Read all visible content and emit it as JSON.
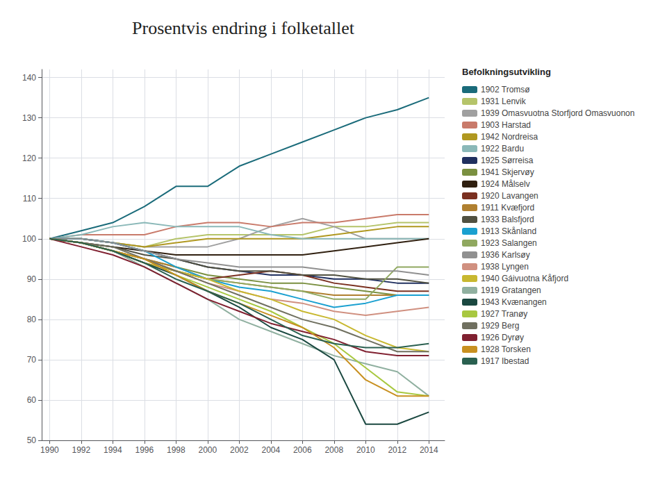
{
  "chart_data": {
    "type": "line",
    "title": "Prosentvis endring i folketallet",
    "legend_title": "Befolkningsutvikling",
    "x": [
      1990,
      1992,
      1994,
      1996,
      1998,
      2000,
      2002,
      2004,
      2006,
      2008,
      2010,
      2012,
      2014
    ],
    "xlim": [
      1989.5,
      2015.0
    ],
    "xticks": [
      1990,
      1992,
      1994,
      1996,
      1998,
      2000,
      2002,
      2004,
      2006,
      2008,
      2010,
      2012,
      2014
    ],
    "ylim": [
      50,
      142
    ],
    "yticks": [
      50,
      60,
      70,
      80,
      90,
      100,
      110,
      120,
      130,
      140
    ],
    "grid": true,
    "legend": "right",
    "series": [
      {
        "name": "1902 Tromsø",
        "color": "#1a6b7a",
        "values": [
          100,
          102,
          104,
          108,
          113,
          113,
          118,
          121,
          124,
          127,
          130,
          132,
          135
        ]
      },
      {
        "name": "1931 Lenvik",
        "color": "#b5c46a",
        "values": [
          100,
          100,
          99,
          98,
          100,
          101,
          101,
          101,
          101,
          103,
          103,
          104,
          104
        ]
      },
      {
        "name": "1939 Omasvuotna Storfjord Omasvuonon",
        "color": "#a0a0a0",
        "values": [
          100,
          100,
          99,
          98,
          98,
          98,
          100,
          103,
          105,
          103,
          100,
          100,
          100
        ]
      },
      {
        "name": "1903 Harstad",
        "color": "#c97a6a",
        "values": [
          100,
          101,
          101,
          101,
          103,
          104,
          104,
          103,
          104,
          104,
          105,
          106,
          106
        ]
      },
      {
        "name": "1942 Nordreisa",
        "color": "#b09820",
        "values": [
          100,
          100,
          99,
          98,
          99,
          100,
          100,
          100,
          100,
          101,
          102,
          103,
          103
        ]
      },
      {
        "name": "1922 Bardu",
        "color": "#8ab8b8",
        "values": [
          100,
          101,
          103,
          104,
          103,
          103,
          103,
          101,
          100,
          100,
          100,
          100,
          100
        ]
      },
      {
        "name": "1925 Sørreisa",
        "color": "#203060",
        "values": [
          100,
          100,
          99,
          97,
          95,
          93,
          92,
          91,
          91,
          90,
          90,
          89,
          89
        ]
      },
      {
        "name": "1941 Skjervøy",
        "color": "#7a9040",
        "values": [
          100,
          99,
          97,
          95,
          93,
          91,
          90,
          89,
          89,
          88,
          87,
          86,
          86
        ]
      },
      {
        "name": "1924 Målselv",
        "color": "#302010",
        "values": [
          100,
          99,
          98,
          97,
          96,
          96,
          96,
          96,
          96,
          97,
          98,
          99,
          100
        ]
      },
      {
        "name": "1920 Lavangen",
        "color": "#7a3020",
        "values": [
          100,
          99,
          97,
          94,
          92,
          90,
          91,
          92,
          91,
          89,
          88,
          87,
          87
        ]
      },
      {
        "name": "1911 Kvæfjord",
        "color": "#b08030",
        "values": [
          100,
          99,
          97,
          95,
          93,
          90,
          89,
          88,
          87,
          86,
          86,
          86,
          86
        ]
      },
      {
        "name": "1933 Balsfjord",
        "color": "#505040",
        "values": [
          100,
          99,
          98,
          96,
          95,
          93,
          92,
          92,
          91,
          91,
          90,
          90,
          89
        ]
      },
      {
        "name": "1913 Skånland",
        "color": "#1aa0d0",
        "values": [
          100,
          100,
          99,
          97,
          93,
          90,
          88,
          87,
          85,
          83,
          84,
          86,
          86
        ]
      },
      {
        "name": "1923 Salangen",
        "color": "#90a860",
        "values": [
          100,
          99,
          97,
          95,
          92,
          90,
          89,
          88,
          87,
          85,
          85,
          93,
          93
        ]
      },
      {
        "name": "1936 Karlsøy",
        "color": "#909090",
        "values": [
          100,
          100,
          99,
          97,
          95,
          94,
          93,
          93,
          93,
          92,
          92,
          92,
          91
        ]
      },
      {
        "name": "1938 Lyngen",
        "color": "#d09080",
        "values": [
          100,
          99,
          97,
          95,
          92,
          89,
          87,
          85,
          84,
          82,
          81,
          82,
          83
        ]
      },
      {
        "name": "1940 Gáivuotna Kåfjord",
        "color": "#c8b830",
        "values": [
          100,
          99,
          97,
          94,
          92,
          90,
          87,
          85,
          82,
          80,
          76,
          73,
          72
        ]
      },
      {
        "name": "1919 Gratangen",
        "color": "#90b0a0",
        "values": [
          100,
          99,
          97,
          93,
          89,
          85,
          80,
          77,
          74,
          71,
          69,
          67,
          61
        ]
      },
      {
        "name": "1943 Kvænangen",
        "color": "#1a4840",
        "values": [
          100,
          99,
          97,
          94,
          91,
          87,
          83,
          78,
          75,
          70,
          54,
          54,
          57
        ]
      },
      {
        "name": "1927 Tranøy",
        "color": "#a8c840",
        "values": [
          100,
          99,
          97,
          95,
          91,
          88,
          85,
          82,
          78,
          74,
          68,
          62,
          61
        ]
      },
      {
        "name": "1929 Berg",
        "color": "#707060",
        "values": [
          100,
          99,
          98,
          95,
          92,
          89,
          86,
          83,
          80,
          78,
          75,
          72,
          72
        ]
      },
      {
        "name": "1926 Dyrøy",
        "color": "#802030",
        "values": [
          100,
          98,
          96,
          93,
          89,
          85,
          82,
          79,
          77,
          75,
          72,
          71,
          71
        ]
      },
      {
        "name": "1928 Torsken",
        "color": "#c89020",
        "values": [
          100,
          99,
          97,
          95,
          91,
          87,
          84,
          81,
          78,
          73,
          65,
          61,
          61
        ]
      },
      {
        "name": "1917 Ibestad",
        "color": "#2a6050",
        "values": [
          100,
          99,
          97,
          94,
          90,
          87,
          84,
          80,
          76,
          74,
          73,
          73,
          74
        ]
      }
    ]
  }
}
